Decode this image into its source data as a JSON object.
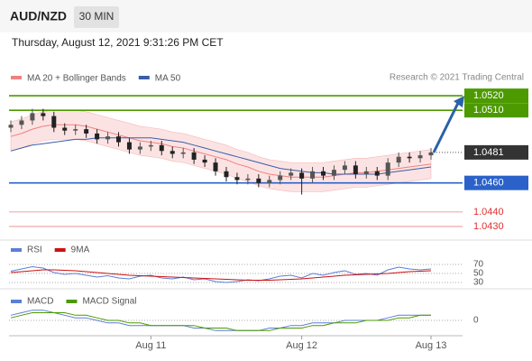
{
  "header": {
    "symbol": "AUD/NZD",
    "timeframe": "30 MIN",
    "datetime": "Thursday, August 12, 2021 9:31:26 PM CET"
  },
  "chart_data": {
    "type": "candlestick",
    "copyright": "Research © 2021 Trading Central",
    "categories": [
      null,
      null,
      null,
      null,
      null,
      null,
      null,
      null,
      null,
      null,
      null,
      null,
      null,
      "Aug 11",
      null,
      null,
      null,
      null,
      null,
      null,
      null,
      null,
      null,
      null,
      null,
      null,
      null,
      "Aug 12",
      null,
      null,
      null,
      null,
      null,
      null,
      null,
      null,
      null,
      null,
      null,
      "Aug 13"
    ],
    "open": [
      1.0498,
      1.05,
      1.0503,
      1.0508,
      1.0506,
      1.0498,
      1.0496,
      1.0497,
      1.0494,
      1.049,
      1.0492,
      1.0488,
      1.0483,
      1.0485,
      1.0486,
      1.0482,
      1.048,
      1.0481,
      1.0476,
      1.0474,
      1.0468,
      1.0464,
      1.0462,
      1.0463,
      1.046,
      1.0462,
      1.0465,
      1.0467,
      1.0463,
      1.0468,
      1.0465,
      1.0469,
      1.0472,
      1.0466,
      1.0468,
      1.0465,
      1.0474,
      1.0478,
      1.0477,
      1.0479
    ],
    "high": [
      1.0503,
      1.0506,
      1.0511,
      1.0511,
      1.0509,
      1.0501,
      1.05,
      1.05,
      1.0497,
      1.0495,
      1.0495,
      1.0491,
      1.0488,
      1.0489,
      1.0489,
      1.0485,
      1.0484,
      1.0484,
      1.0479,
      1.0477,
      1.0471,
      1.0467,
      1.0466,
      1.0466,
      1.0465,
      1.0468,
      1.047,
      1.047,
      1.0471,
      1.0471,
      1.0472,
      1.0475,
      1.0475,
      1.0471,
      1.0471,
      1.0477,
      1.0481,
      1.0481,
      1.0482,
      1.0484
    ],
    "low": [
      1.0495,
      1.0497,
      1.05,
      1.0503,
      1.0495,
      1.0493,
      1.0493,
      1.0491,
      1.0487,
      1.0487,
      1.0485,
      1.048,
      1.048,
      1.0482,
      1.0479,
      1.0477,
      1.0477,
      1.0473,
      1.0471,
      1.0465,
      1.0461,
      1.0459,
      1.0459,
      1.0457,
      1.0457,
      1.0459,
      1.0462,
      1.0452,
      1.046,
      1.0462,
      1.0462,
      1.0466,
      1.0463,
      1.0463,
      1.0462,
      1.0462,
      1.0471,
      1.0474,
      1.0474,
      1.0476
    ],
    "close": [
      1.05,
      1.0503,
      1.0508,
      1.0506,
      1.0498,
      1.0496,
      1.0497,
      1.0494,
      1.049,
      1.0492,
      1.0488,
      1.0483,
      1.0485,
      1.0486,
      1.0482,
      1.048,
      1.0481,
      1.0476,
      1.0474,
      1.0468,
      1.0464,
      1.0462,
      1.0463,
      1.046,
      1.0462,
      1.0465,
      1.0467,
      1.0463,
      1.0468,
      1.0465,
      1.0469,
      1.0472,
      1.0466,
      1.0468,
      1.0465,
      1.0474,
      1.0478,
      1.0477,
      1.0479,
      1.0481
    ],
    "up_color": "#555555",
    "down_color": "#222222",
    "series": [
      {
        "name": "MA 20 + Bollinger Bands",
        "color": "#f08080",
        "values": [
          1.0492,
          1.0494,
          1.0497,
          1.0499,
          1.05,
          1.05,
          1.05,
          1.0499,
          1.0497,
          1.0495,
          1.0493,
          1.0491,
          1.0489,
          1.0488,
          1.0487,
          1.0485,
          1.0484,
          1.0482,
          1.048,
          1.0478,
          1.0476,
          1.0473,
          1.0471,
          1.0468,
          1.0466,
          1.0465,
          1.0464,
          1.0464,
          1.0464,
          1.0464,
          1.0465,
          1.0466,
          1.0467,
          1.0467,
          1.0468,
          1.0469,
          1.047,
          1.0471,
          1.0472,
          1.0473
        ],
        "upper": [
          1.0502,
          1.0504,
          1.0507,
          1.0509,
          1.051,
          1.051,
          1.051,
          1.0509,
          1.0507,
          1.0505,
          1.0503,
          1.0501,
          1.0499,
          1.0498,
          1.0497,
          1.0495,
          1.0494,
          1.0492,
          1.049,
          1.0488,
          1.0486,
          1.0483,
          1.0481,
          1.0478,
          1.0476,
          1.0475,
          1.0474,
          1.0474,
          1.0474,
          1.0474,
          1.0475,
          1.0476,
          1.0477,
          1.0477,
          1.0478,
          1.0479,
          1.048,
          1.0481,
          1.0482,
          1.0483
        ],
        "lower": [
          1.0482,
          1.0484,
          1.0487,
          1.0489,
          1.049,
          1.049,
          1.049,
          1.0489,
          1.0487,
          1.0485,
          1.0483,
          1.0481,
          1.0479,
          1.0478,
          1.0477,
          1.0475,
          1.0474,
          1.0472,
          1.047,
          1.0468,
          1.0466,
          1.0463,
          1.0461,
          1.0458,
          1.0456,
          1.0455,
          1.0454,
          1.0454,
          1.0454,
          1.0454,
          1.0455,
          1.0456,
          1.0457,
          1.0457,
          1.0458,
          1.0459,
          1.046,
          1.0461,
          1.0462,
          1.0463
        ]
      },
      {
        "name": "MA 50",
        "color": "#3a5ea8",
        "values": [
          1.0482,
          1.0484,
          1.0486,
          1.0487,
          1.0488,
          1.0489,
          1.049,
          1.049,
          1.0491,
          1.0491,
          1.0491,
          1.0491,
          1.0491,
          1.0491,
          1.049,
          1.0489,
          1.0488,
          1.0486,
          1.0484,
          1.0482,
          1.048,
          1.0478,
          1.0476,
          1.0474,
          1.0472,
          1.047,
          1.0469,
          1.0468,
          1.0467,
          1.0467,
          1.0466,
          1.0466,
          1.0466,
          1.0466,
          1.0466,
          1.0467,
          1.0468,
          1.0469,
          1.047,
          1.0471
        ]
      }
    ],
    "ylim": [
      1.0425,
      1.053
    ],
    "levels": [
      {
        "value": 1.052,
        "label": "1.0520",
        "color": "#4c9a00",
        "style": "box"
      },
      {
        "value": 1.051,
        "label": "1.0510",
        "color": "#4c9a00",
        "style": "box"
      },
      {
        "value": 1.0481,
        "label": "1.0481",
        "color": "#333333",
        "style": "current"
      },
      {
        "value": 1.046,
        "label": "1.0460",
        "color": "#2a62c9",
        "style": "box"
      },
      {
        "value": 1.044,
        "label": "1.0440",
        "color": "#e03030",
        "style": "text"
      },
      {
        "value": 1.043,
        "label": "1.0430",
        "color": "#e03030",
        "style": "text"
      }
    ],
    "rsi": {
      "ylim": [
        20,
        80
      ],
      "yticks": [
        70,
        50,
        30
      ],
      "series": [
        {
          "name": "RSI",
          "color": "#5b7fd6",
          "values": [
            55,
            60,
            65,
            62,
            52,
            48,
            50,
            46,
            42,
            45,
            40,
            38,
            44,
            46,
            40,
            38,
            42,
            36,
            38,
            32,
            30,
            32,
            36,
            34,
            38,
            44,
            46,
            40,
            50,
            46,
            52,
            56,
            48,
            50,
            46,
            58,
            64,
            60,
            58,
            60
          ]
        },
        {
          "name": "9MA",
          "color": "#cc1111",
          "values": [
            52,
            54,
            56,
            58,
            58,
            57,
            56,
            54,
            52,
            50,
            48,
            46,
            45,
            44,
            43,
            42,
            41,
            40,
            39,
            38,
            37,
            36,
            35,
            35,
            35,
            36,
            37,
            38,
            40,
            42,
            44,
            46,
            47,
            48,
            49,
            50,
            52,
            54,
            55,
            56
          ]
        }
      ]
    },
    "macd": {
      "ylim": [
        -0.0006,
        0.0006
      ],
      "yticks": [
        0
      ],
      "series": [
        {
          "name": "MACD",
          "color": "#5b7fd6",
          "values": [
            0.0002,
            0.0003,
            0.0004,
            0.0004,
            0.0003,
            0.0002,
            0.0001,
            0.0001,
            0,
            -0.0001,
            -0.0001,
            -0.0002,
            -0.0002,
            -0.0002,
            -0.0002,
            -0.0002,
            -0.0002,
            -0.0003,
            -0.0003,
            -0.0004,
            -0.0004,
            -0.0004,
            -0.0004,
            -0.0004,
            -0.0003,
            -0.0003,
            -0.0002,
            -0.0002,
            -0.0001,
            -0.0001,
            -0.0001,
            0,
            0,
            0,
            0,
            0.0001,
            0.0002,
            0.0002,
            0.0002,
            0.0002
          ]
        },
        {
          "name": "MACD Signal",
          "color": "#4c9a00",
          "values": [
            0.0001,
            0.0002,
            0.0003,
            0.0003,
            0.0003,
            0.0003,
            0.0002,
            0.0002,
            0.0001,
            0,
            0,
            -0.0001,
            -0.0001,
            -0.0002,
            -0.0002,
            -0.0002,
            -0.0002,
            -0.0002,
            -0.0003,
            -0.0003,
            -0.0003,
            -0.0004,
            -0.0004,
            -0.0004,
            -0.0004,
            -0.0003,
            -0.0003,
            -0.0003,
            -0.0002,
            -0.0002,
            -0.0001,
            -0.0001,
            -0.0001,
            0,
            0,
            0,
            0.0001,
            0.0001,
            0.0002,
            0.0002
          ]
        }
      ]
    }
  }
}
